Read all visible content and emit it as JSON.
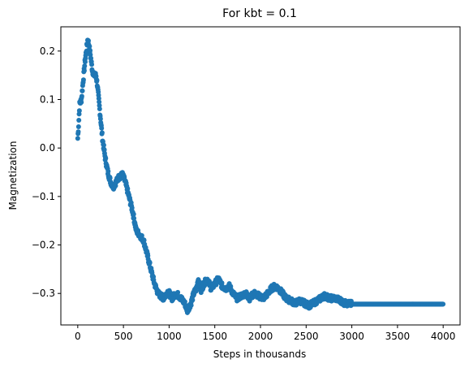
{
  "chart_data": {
    "type": "scatter",
    "title": "For kbt = 0.1",
    "xlabel": "Steps in thousands",
    "ylabel": "Magnetization",
    "xlim": [
      -185,
      4185
    ],
    "ylim": [
      -0.365,
      0.25
    ],
    "xticks": [
      0,
      500,
      1000,
      1500,
      2000,
      2500,
      3000,
      3500,
      4000
    ],
    "yticks": [
      0.2,
      0.1,
      0.0,
      -0.1,
      -0.2,
      -0.3
    ],
    "ytick_labels": [
      "0.2",
      "0.1",
      "0.0",
      "−0.1",
      "−0.2",
      "−0.3"
    ],
    "grid": false,
    "marker_color": "#1f77b4",
    "keypoints": [
      [
        0,
        0.02
      ],
      [
        10,
        0.05
      ],
      [
        20,
        0.09
      ],
      [
        40,
        0.1
      ],
      [
        60,
        0.14
      ],
      [
        80,
        0.18
      ],
      [
        100,
        0.21
      ],
      [
        110,
        0.225
      ],
      [
        125,
        0.21
      ],
      [
        140,
        0.19
      ],
      [
        160,
        0.16
      ],
      [
        180,
        0.15
      ],
      [
        200,
        0.15
      ],
      [
        215,
        0.13
      ],
      [
        240,
        0.08
      ],
      [
        270,
        0.02
      ],
      [
        300,
        -0.02
      ],
      [
        330,
        -0.05
      ],
      [
        360,
        -0.07
      ],
      [
        390,
        -0.08
      ],
      [
        420,
        -0.07
      ],
      [
        450,
        -0.06
      ],
      [
        490,
        -0.055
      ],
      [
        520,
        -0.07
      ],
      [
        560,
        -0.1
      ],
      [
        600,
        -0.13
      ],
      [
        640,
        -0.17
      ],
      [
        680,
        -0.18
      ],
      [
        720,
        -0.19
      ],
      [
        760,
        -0.22
      ],
      [
        800,
        -0.25
      ],
      [
        840,
        -0.28
      ],
      [
        880,
        -0.3
      ],
      [
        940,
        -0.31
      ],
      [
        990,
        -0.295
      ],
      [
        1030,
        -0.31
      ],
      [
        1080,
        -0.3
      ],
      [
        1130,
        -0.31
      ],
      [
        1170,
        -0.32
      ],
      [
        1200,
        -0.335
      ],
      [
        1240,
        -0.32
      ],
      [
        1270,
        -0.3
      ],
      [
        1300,
        -0.29
      ],
      [
        1320,
        -0.27
      ],
      [
        1350,
        -0.295
      ],
      [
        1380,
        -0.28
      ],
      [
        1420,
        -0.27
      ],
      [
        1460,
        -0.29
      ],
      [
        1500,
        -0.28
      ],
      [
        1540,
        -0.27
      ],
      [
        1580,
        -0.285
      ],
      [
        1620,
        -0.29
      ],
      [
        1660,
        -0.285
      ],
      [
        1700,
        -0.3
      ],
      [
        1740,
        -0.31
      ],
      [
        1790,
        -0.305
      ],
      [
        1840,
        -0.3
      ],
      [
        1880,
        -0.31
      ],
      [
        1930,
        -0.3
      ],
      [
        1980,
        -0.305
      ],
      [
        2030,
        -0.31
      ],
      [
        2080,
        -0.3
      ],
      [
        2120,
        -0.29
      ],
      [
        2160,
        -0.285
      ],
      [
        2200,
        -0.29
      ],
      [
        2240,
        -0.3
      ],
      [
        2280,
        -0.31
      ],
      [
        2330,
        -0.315
      ],
      [
        2380,
        -0.32
      ],
      [
        2430,
        -0.315
      ],
      [
        2480,
        -0.32
      ],
      [
        2530,
        -0.325
      ],
      [
        2580,
        -0.32
      ],
      [
        2620,
        -0.315
      ],
      [
        2660,
        -0.31
      ],
      [
        2700,
        -0.305
      ],
      [
        2760,
        -0.31
      ],
      [
        2820,
        -0.31
      ],
      [
        2880,
        -0.315
      ],
      [
        2920,
        -0.32
      ],
      [
        3000,
        -0.322
      ],
      [
        3500,
        -0.322
      ],
      [
        4000,
        -0.322
      ]
    ]
  }
}
